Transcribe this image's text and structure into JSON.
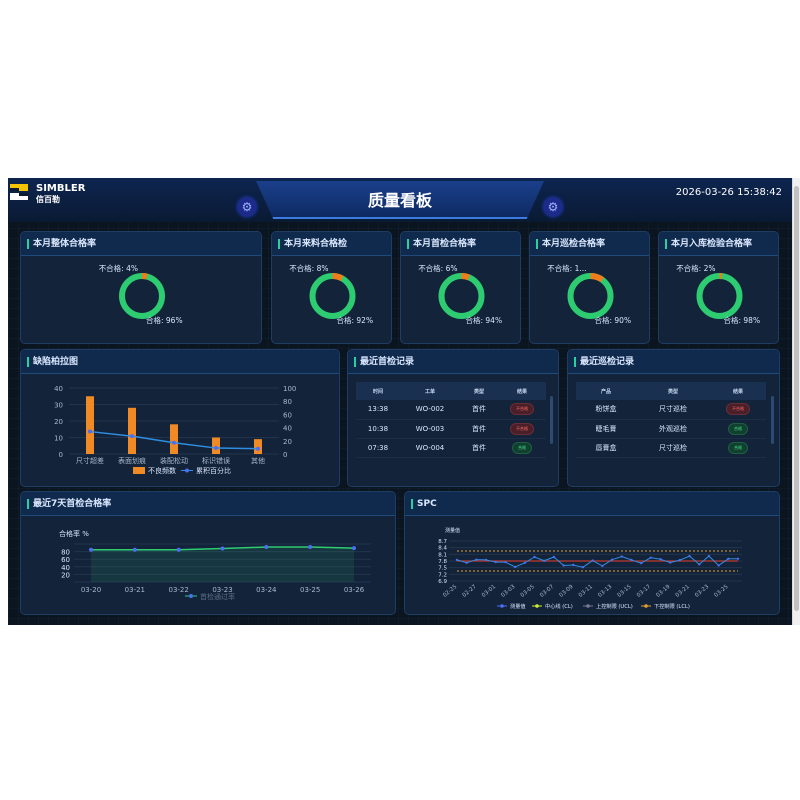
{
  "header": {
    "brand": "SIMBLER",
    "brand_cn": "信百勒",
    "title": "质量看板",
    "datetime": "2026-03-26 15:38:42"
  },
  "colors": {
    "pass": "#2ecc71",
    "fail": "#f07c1a",
    "bar": "#f08a24",
    "line": "#2f8ee0",
    "point": "#4c6ef5",
    "cl": "#c0392b",
    "limit": "#e0a030"
  },
  "kpis": [
    {
      "title": "本月整体合格率",
      "fail_label": "不合格: 4%",
      "pass_label": "合格: 96%",
      "pass": 96
    },
    {
      "title": "本月来料合格检",
      "fail_label": "不合格: 8%",
      "pass_label": "合格: 92%",
      "pass": 92
    },
    {
      "title": "本月首检合格率",
      "fail_label": "不合格: 6%",
      "pass_label": "合格: 94%",
      "pass": 94
    },
    {
      "title": "本月巡检合格率",
      "fail_label": "不合格: 1...",
      "pass_label": "合格: 90%",
      "pass": 90
    },
    {
      "title": "本月入库检验合格率",
      "fail_label": "不合格: 2%",
      "pass_label": "合格: 98%",
      "pass": 98
    }
  ],
  "first_inspection": {
    "title": "最近首检记录",
    "headers": [
      "时间",
      "工单",
      "类型",
      "结果"
    ],
    "rows": [
      [
        "13:38",
        "WO-002",
        "首件",
        "不合格"
      ],
      [
        "10:38",
        "WO-003",
        "首件",
        "不合格"
      ],
      [
        "07:38",
        "WO-004",
        "首件",
        "合格"
      ]
    ]
  },
  "patrol": {
    "title": "最近巡检记录",
    "headers": [
      "产品",
      "类型",
      "结果"
    ],
    "rows": [
      [
        "粉饼盒",
        "尺寸巡检",
        "不合格"
      ],
      [
        "睫毛膏",
        "外观巡检",
        "合格"
      ],
      [
        "唇膏盒",
        "尺寸巡检",
        "合格"
      ]
    ]
  },
  "chart_data": [
    {
      "type": "bar",
      "title": "缺陷柏拉图",
      "categories": [
        "尺寸超差",
        "表面划痕",
        "装配松动",
        "标识错误",
        "其他"
      ],
      "series": [
        {
          "name": "不良频数",
          "type": "bar",
          "values": [
            35,
            28,
            18,
            10,
            9
          ],
          "axis": "left"
        },
        {
          "name": "累积百分比",
          "type": "line",
          "values": [
            34,
            27,
            17,
            9,
            8
          ],
          "axis": "right"
        }
      ],
      "ylim": [
        0,
        40
      ],
      "yticks": [
        0,
        10,
        20,
        30,
        40
      ],
      "y2lim": [
        0,
        100
      ],
      "y2ticks": [
        0,
        20,
        40,
        60,
        80,
        100
      ],
      "legend": "bottom"
    },
    {
      "type": "area",
      "title": "最近7天首检合格率",
      "ylabel": "合格率 %",
      "x": [
        "03-20",
        "03-21",
        "03-22",
        "03-23",
        "03-24",
        "03-25",
        "03-26"
      ],
      "series": [
        {
          "name": "首检通过率",
          "values": [
            85,
            85,
            85,
            88,
            92,
            92,
            89
          ]
        }
      ],
      "ylim": [
        0,
        100
      ],
      "yticks": [
        20,
        40,
        60,
        80
      ],
      "legend": "bottom"
    },
    {
      "type": "line",
      "title": "SPC",
      "ylabel": "测量值",
      "x": [
        "02-25",
        "02-26",
        "02-27",
        "02-28",
        "03-01",
        "03-02",
        "03-03",
        "03-04",
        "03-05",
        "03-06",
        "03-07",
        "03-08",
        "03-09",
        "03-10",
        "03-11",
        "03-12",
        "03-13",
        "03-14",
        "03-15",
        "03-16",
        "03-17",
        "03-18",
        "03-19",
        "03-20",
        "03-21",
        "03-22",
        "03-23",
        "03-24",
        "03-25",
        "03-26"
      ],
      "xticks": [
        "02-25",
        "02-27",
        "03-01",
        "03-03",
        "03-05",
        "03-07",
        "03-09",
        "03-11",
        "03-13",
        "03-15",
        "03-17",
        "03-19",
        "03-21",
        "03-23",
        "03-25"
      ],
      "series": [
        {
          "name": "测量值",
          "values": [
            7.85,
            7.72,
            7.86,
            7.85,
            7.75,
            7.75,
            7.53,
            7.72,
            7.98,
            7.81,
            7.98,
            7.6,
            7.62,
            7.52,
            7.82,
            7.58,
            7.86,
            8.0,
            7.85,
            7.7,
            7.95,
            7.88,
            7.73,
            7.84,
            8.02,
            7.65,
            8.02,
            7.6,
            7.9,
            7.9
          ]
        },
        {
          "name": "中心线 (CL)",
          "value": 7.8
        },
        {
          "name": "上控制限 (UCL)",
          "value": 8.25
        },
        {
          "name": "下控制限 (LCL)",
          "value": 7.35
        }
      ],
      "ylim": [
        6.9,
        8.7
      ],
      "yticks": [
        6.9,
        7.2,
        7.5,
        7.8,
        8.1,
        8.4,
        8.7
      ],
      "legend": "bottom"
    }
  ]
}
